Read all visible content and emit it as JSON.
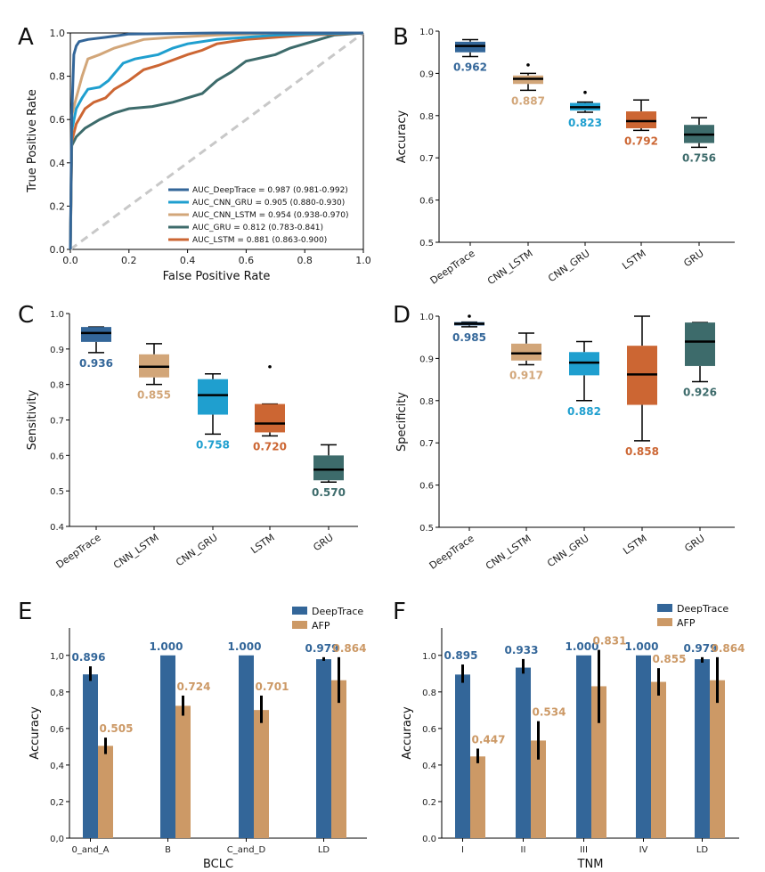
{
  "colors": {
    "DeepTrace": "#336699",
    "CNN_LSTM": "#d2a679",
    "CNN_GRU": "#1f9fcf",
    "LSTM": "#cc6633",
    "GRU": "#3d6b6b",
    "AFP": "#cc9966",
    "diag": "#c8c8c8"
  },
  "chart_data": [
    {
      "panel": "A",
      "type": "line",
      "xlabel": "False Positive Rate",
      "ylabel": "True Positive Rate",
      "xlim": [
        0,
        1
      ],
      "ylim": [
        0,
        1
      ],
      "xticks": [
        "0.0",
        "0.2",
        "0.4",
        "0.6",
        "0.8",
        "1.0"
      ],
      "yticks": [
        "0.0",
        "0.2",
        "0.4",
        "0.6",
        "0.8",
        "1.0"
      ],
      "series": [
        {
          "name": "AUC_DeepTrace = 0.987 (0.981-0.992)",
          "color_key": "DeepTrace",
          "x": [
            0,
            0.005,
            0.012,
            0.02,
            0.03,
            0.06,
            0.12,
            0.2,
            0.5,
            1.0
          ],
          "y": [
            0,
            0.62,
            0.9,
            0.94,
            0.96,
            0.97,
            0.98,
            0.995,
            1.0,
            1.0
          ]
        },
        {
          "name": "AUC_CNN_GRU = 0.905 (0.880-0.930)",
          "color_key": "CNN_GRU",
          "x": [
            0,
            0.005,
            0.02,
            0.04,
            0.06,
            0.1,
            0.13,
            0.18,
            0.22,
            0.3,
            0.35,
            0.4,
            0.5,
            0.6,
            0.7,
            0.8,
            1.0
          ],
          "y": [
            0,
            0.55,
            0.65,
            0.7,
            0.74,
            0.75,
            0.78,
            0.86,
            0.88,
            0.9,
            0.93,
            0.95,
            0.97,
            0.98,
            0.99,
            0.995,
            1.0
          ]
        },
        {
          "name": "AUC_CNN_LSTM = 0.954 (0.938-0.970)",
          "color_key": "CNN_LSTM",
          "x": [
            0,
            0.005,
            0.02,
            0.04,
            0.06,
            0.1,
            0.15,
            0.2,
            0.25,
            0.35,
            0.5,
            0.7,
            1.0
          ],
          "y": [
            0,
            0.62,
            0.7,
            0.8,
            0.88,
            0.9,
            0.93,
            0.95,
            0.97,
            0.98,
            0.99,
            1.0,
            1.0
          ]
        },
        {
          "name": "AUC_GRU = 0.812 (0.783-0.841)",
          "color_key": "GRU",
          "x": [
            0,
            0.005,
            0.02,
            0.05,
            0.1,
            0.15,
            0.2,
            0.28,
            0.35,
            0.45,
            0.5,
            0.55,
            0.6,
            0.7,
            0.75,
            0.85,
            0.9,
            1.0
          ],
          "y": [
            0,
            0.48,
            0.52,
            0.56,
            0.6,
            0.63,
            0.65,
            0.66,
            0.68,
            0.72,
            0.78,
            0.82,
            0.87,
            0.9,
            0.93,
            0.97,
            0.99,
            1.0
          ]
        },
        {
          "name": "AUC_LSTM = 0.881 (0.863-0.900)",
          "color_key": "LSTM",
          "x": [
            0,
            0.005,
            0.02,
            0.05,
            0.08,
            0.12,
            0.15,
            0.2,
            0.25,
            0.3,
            0.4,
            0.45,
            0.5,
            0.55,
            0.6,
            0.7,
            0.8,
            1.0
          ],
          "y": [
            0,
            0.5,
            0.58,
            0.65,
            0.68,
            0.7,
            0.74,
            0.78,
            0.83,
            0.85,
            0.9,
            0.92,
            0.95,
            0.96,
            0.97,
            0.98,
            0.99,
            1.0
          ]
        },
        {
          "name": "",
          "color_key": "diag",
          "dashed": true,
          "x": [
            0,
            1
          ],
          "y": [
            0,
            1
          ]
        }
      ]
    },
    {
      "panel": "B",
      "type": "box",
      "ylabel": "Accuracy",
      "ylim": [
        0.5,
        1.0
      ],
      "yticks": [
        "0.5",
        "0.6",
        "0.7",
        "0.8",
        "0.9",
        "1.0"
      ],
      "categories": [
        "DeepTrace",
        "CNN_LSTM",
        "CNN_GRU",
        "LSTM",
        "GRU"
      ],
      "boxes": [
        {
          "whislo": 0.94,
          "q1": 0.95,
          "med": 0.965,
          "q3": 0.975,
          "whishi": 0.98,
          "fliers": [],
          "label": "0.962"
        },
        {
          "whislo": 0.86,
          "q1": 0.875,
          "med": 0.887,
          "q3": 0.895,
          "whishi": 0.9,
          "fliers": [
            0.92
          ],
          "label": "0.887"
        },
        {
          "whislo": 0.808,
          "q1": 0.812,
          "med": 0.82,
          "q3": 0.83,
          "whishi": 0.832,
          "fliers": [
            0.855
          ],
          "label": "0.823"
        },
        {
          "whislo": 0.765,
          "q1": 0.77,
          "med": 0.787,
          "q3": 0.81,
          "whishi": 0.837,
          "fliers": [],
          "label": "0.792"
        },
        {
          "whislo": 0.725,
          "q1": 0.735,
          "med": 0.755,
          "q3": 0.778,
          "whishi": 0.795,
          "fliers": [],
          "label": "0.756"
        }
      ]
    },
    {
      "panel": "C",
      "type": "box",
      "ylabel": "Sensitivity",
      "ylim": [
        0.4,
        1.0
      ],
      "yticks": [
        "0.4",
        "0.5",
        "0.6",
        "0.7",
        "0.8",
        "0.9",
        "1.0"
      ],
      "categories": [
        "DeepTrace",
        "CNN_LSTM",
        "CNN_GRU",
        "LSTM",
        "GRU"
      ],
      "boxes": [
        {
          "whislo": 0.89,
          "q1": 0.92,
          "med": 0.945,
          "q3": 0.962,
          "whishi": 0.962,
          "fliers": [],
          "label": "0.936"
        },
        {
          "whislo": 0.8,
          "q1": 0.82,
          "med": 0.85,
          "q3": 0.885,
          "whishi": 0.915,
          "fliers": [],
          "label": "0.855"
        },
        {
          "whislo": 0.66,
          "q1": 0.715,
          "med": 0.77,
          "q3": 0.815,
          "whishi": 0.83,
          "fliers": [],
          "label": "0.758"
        },
        {
          "whislo": 0.655,
          "q1": 0.665,
          "med": 0.69,
          "q3": 0.745,
          "whishi": 0.745,
          "fliers": [
            0.85
          ],
          "label": "0.720"
        },
        {
          "whislo": 0.525,
          "q1": 0.53,
          "med": 0.56,
          "q3": 0.6,
          "whishi": 0.63,
          "fliers": [],
          "label": "0.570"
        }
      ]
    },
    {
      "panel": "D",
      "type": "box",
      "ylabel": "Specificity",
      "ylim": [
        0.5,
        1.0
      ],
      "yticks": [
        "0.5",
        "0.6",
        "0.7",
        "0.8",
        "0.9",
        "1.0"
      ],
      "categories": [
        "DeepTrace",
        "CNN_LSTM",
        "CNN_GRU",
        "LSTM",
        "GRU"
      ],
      "boxes": [
        {
          "whislo": 0.975,
          "q1": 0.978,
          "med": 0.982,
          "q3": 0.986,
          "whishi": 0.986,
          "fliers": [
            1.0
          ],
          "label": "0.985"
        },
        {
          "whislo": 0.885,
          "q1": 0.895,
          "med": 0.912,
          "q3": 0.935,
          "whishi": 0.96,
          "fliers": [],
          "label": "0.917"
        },
        {
          "whislo": 0.8,
          "q1": 0.86,
          "med": 0.89,
          "q3": 0.915,
          "whishi": 0.94,
          "fliers": [],
          "label": "0.882"
        },
        {
          "whislo": 0.705,
          "q1": 0.79,
          "med": 0.862,
          "q3": 0.93,
          "whishi": 1.0,
          "fliers": [],
          "label": "0.858"
        },
        {
          "whislo": 0.845,
          "q1": 0.882,
          "med": 0.94,
          "q3": 0.985,
          "whishi": 0.985,
          "fliers": [],
          "label": "0.926"
        }
      ]
    },
    {
      "panel": "E",
      "type": "bar",
      "xlabel": "BCLC",
      "ylabel": "Accuracy",
      "ylim": [
        0,
        1.15
      ],
      "yticks": [
        "0,0",
        "0,2",
        "0,4",
        "0,6",
        "0,8",
        "1,0"
      ],
      "categories": [
        "0_and_A",
        "B",
        "C_and_D",
        "LD"
      ],
      "series": [
        {
          "name": "DeepTrace",
          "values": [
            0.896,
            1.0,
            1.0,
            0.979
          ],
          "labels": [
            "0.896",
            "1.000",
            "1.000",
            "0.979"
          ],
          "err": [
            [
              0.86,
              0.94
            ],
            [
              1.0,
              1.0
            ],
            [
              1.0,
              1.0
            ],
            [
              0.97,
              0.99
            ]
          ]
        },
        {
          "name": "AFP",
          "values": [
            0.505,
            0.724,
            0.701,
            0.864
          ],
          "labels": [
            "0.505",
            "0.724",
            "0.701",
            "0.864"
          ],
          "err": [
            [
              0.46,
              0.55
            ],
            [
              0.67,
              0.78
            ],
            [
              0.63,
              0.78
            ],
            [
              0.74,
              0.99
            ]
          ]
        }
      ]
    },
    {
      "panel": "F",
      "type": "bar",
      "xlabel": "TNM",
      "ylabel": "Accuracy",
      "ylim": [
        0,
        1.15
      ],
      "yticks": [
        "0.0",
        "0.2",
        "0.4",
        "0.6",
        "0.8",
        "1.0"
      ],
      "categories": [
        "I",
        "II",
        "III",
        "IV",
        "LD"
      ],
      "series": [
        {
          "name": "DeepTrace",
          "values": [
            0.895,
            0.933,
            1.0,
            1.0,
            0.979
          ],
          "labels": [
            "0.895",
            "0.933",
            "1.000",
            "1.000",
            "0.979"
          ],
          "err": [
            [
              0.85,
              0.95
            ],
            [
              0.9,
              0.98
            ],
            [
              1.0,
              1.0
            ],
            [
              1.0,
              1.0
            ],
            [
              0.96,
              0.99
            ]
          ]
        },
        {
          "name": "AFP",
          "values": [
            0.447,
            0.534,
            0.831,
            0.855,
            0.864
          ],
          "labels": [
            "0.447",
            "0.534",
            "0.831",
            "0.855",
            "0.864"
          ],
          "err": [
            [
              0.41,
              0.49
            ],
            [
              0.43,
              0.64
            ],
            [
              0.63,
              1.03
            ],
            [
              0.78,
              0.93
            ],
            [
              0.74,
              0.99
            ]
          ]
        }
      ]
    }
  ]
}
